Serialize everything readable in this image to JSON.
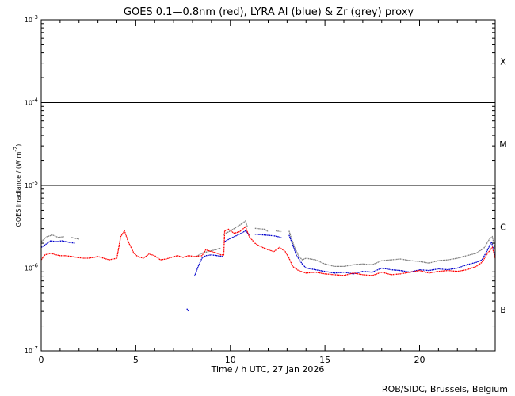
{
  "chart_data": {
    "type": "line",
    "title": "GOES 0.1—0.8nm (red), LYRA Al (blue) & Zr (grey) proxy",
    "xlabel": "Time / h UTC, 27 Jan 2026",
    "ylabel_parts": {
      "main": "GOES Irradiance / (W m",
      "exp": "-2",
      "close": ")"
    },
    "credit": "ROB/SIDC, Brussels, Belgium",
    "xlim": [
      0,
      24
    ],
    "ylim_log10": [
      -7,
      -3
    ],
    "x_ticks": [
      {
        "value": 0,
        "label": "0"
      },
      {
        "value": 5,
        "label": "5"
      },
      {
        "value": 10,
        "label": "10"
      },
      {
        "value": 15,
        "label": "15"
      },
      {
        "value": 20,
        "label": "20"
      }
    ],
    "y_ticks": [
      {
        "value": -7,
        "base": "10",
        "exp": "-7"
      },
      {
        "value": -6,
        "base": "10",
        "exp": "-6"
      },
      {
        "value": -5,
        "base": "10",
        "exp": "-5"
      },
      {
        "value": -4,
        "base": "10",
        "exp": "-4"
      },
      {
        "value": -3,
        "base": "10",
        "exp": "-3"
      }
    ],
    "reference_lines_log10": [
      -6,
      -5,
      -4
    ],
    "flare_classes": [
      {
        "label": "B",
        "log10": -6.5
      },
      {
        "label": "C",
        "log10": -5.5
      },
      {
        "label": "M",
        "log10": -4.5
      },
      {
        "label": "X",
        "log10": -3.5
      }
    ],
    "series": [
      {
        "name": "LYRA Zr proxy (grey)",
        "color": "#808080",
        "points": [
          [
            0.0,
            -5.68
          ],
          [
            0.3,
            -5.62
          ],
          [
            0.6,
            -5.6
          ],
          [
            0.9,
            -5.63
          ],
          [
            1.2,
            -5.62
          ],
          [
            1.5,
            null
          ],
          [
            1.6,
            -5.63
          ],
          [
            2.0,
            -5.65
          ],
          [
            2.1,
            null
          ],
          [
            8.2,
            -5.86
          ],
          [
            8.5,
            -5.82
          ],
          [
            9.0,
            -5.79
          ],
          [
            9.5,
            -5.76
          ],
          [
            9.6,
            null
          ],
          [
            9.6,
            -5.6
          ],
          [
            10.0,
            -5.55
          ],
          [
            10.5,
            -5.48
          ],
          [
            10.8,
            -5.43
          ],
          [
            10.9,
            -5.5
          ],
          [
            11.1,
            null
          ],
          [
            11.3,
            -5.52
          ],
          [
            11.8,
            -5.53
          ],
          [
            12.0,
            -5.56
          ],
          [
            12.3,
            null
          ],
          [
            12.4,
            -5.55
          ],
          [
            12.7,
            -5.56
          ],
          [
            12.9,
            null
          ],
          [
            13.1,
            -5.55
          ],
          [
            13.2,
            -5.62
          ],
          [
            13.4,
            -5.75
          ],
          [
            13.6,
            -5.85
          ],
          [
            13.8,
            -5.9
          ],
          [
            14.0,
            -5.88
          ],
          [
            14.5,
            -5.9
          ],
          [
            15.0,
            -5.95
          ],
          [
            15.5,
            -5.98
          ],
          [
            16.0,
            -5.98
          ],
          [
            16.5,
            -5.96
          ],
          [
            17.0,
            -5.95
          ],
          [
            17.5,
            -5.96
          ],
          [
            18.0,
            -5.91
          ],
          [
            18.5,
            -5.9
          ],
          [
            19.0,
            -5.89
          ],
          [
            19.5,
            -5.91
          ],
          [
            20.0,
            -5.92
          ],
          [
            20.5,
            -5.94
          ],
          [
            21.0,
            -5.91
          ],
          [
            21.5,
            -5.9
          ],
          [
            22.0,
            -5.88
          ],
          [
            22.5,
            -5.85
          ],
          [
            23.0,
            -5.82
          ],
          [
            23.4,
            -5.76
          ],
          [
            23.7,
            -5.65
          ],
          [
            23.85,
            -5.62
          ],
          [
            24.0,
            -5.78
          ]
        ]
      },
      {
        "name": "LYRA Al proxy (blue)",
        "color": "#0000cc",
        "points": [
          [
            0.0,
            -5.75
          ],
          [
            0.2,
            -5.72
          ],
          [
            0.5,
            -5.67
          ],
          [
            0.8,
            -5.68
          ],
          [
            1.1,
            -5.67
          ],
          [
            1.5,
            -5.69
          ],
          [
            1.8,
            -5.7
          ],
          [
            1.9,
            null
          ],
          [
            7.7,
            -6.49
          ],
          [
            7.78,
            -6.52
          ],
          [
            7.85,
            null
          ],
          [
            8.1,
            -6.1
          ],
          [
            8.3,
            -5.98
          ],
          [
            8.5,
            -5.88
          ],
          [
            8.7,
            -5.85
          ],
          [
            9.0,
            -5.84
          ],
          [
            9.3,
            -5.85
          ],
          [
            9.6,
            -5.86
          ],
          [
            9.7,
            null
          ],
          [
            9.7,
            -5.68
          ],
          [
            10.0,
            -5.64
          ],
          [
            10.4,
            -5.6
          ],
          [
            10.8,
            -5.55
          ],
          [
            11.0,
            -5.6
          ],
          [
            11.1,
            null
          ],
          [
            11.3,
            -5.59
          ],
          [
            11.8,
            -5.6
          ],
          [
            12.3,
            -5.61
          ],
          [
            12.7,
            -5.63
          ],
          [
            12.8,
            null
          ],
          [
            13.1,
            -5.6
          ],
          [
            13.3,
            -5.72
          ],
          [
            13.5,
            -5.85
          ],
          [
            13.8,
            -5.95
          ],
          [
            14.0,
            -6.0
          ],
          [
            14.5,
            -6.02
          ],
          [
            15.0,
            -6.04
          ],
          [
            15.5,
            -6.06
          ],
          [
            16.0,
            -6.05
          ],
          [
            16.5,
            -6.07
          ],
          [
            17.0,
            -6.04
          ],
          [
            17.5,
            -6.05
          ],
          [
            18.0,
            -6.0
          ],
          [
            18.5,
            -6.02
          ],
          [
            19.0,
            -6.03
          ],
          [
            19.5,
            -6.05
          ],
          [
            20.0,
            -6.02
          ],
          [
            20.5,
            -6.03
          ],
          [
            21.0,
            -6.01
          ],
          [
            21.5,
            -6.02
          ],
          [
            22.0,
            -6.0
          ],
          [
            22.5,
            -5.96
          ],
          [
            23.0,
            -5.93
          ],
          [
            23.3,
            -5.9
          ],
          [
            23.6,
            -5.78
          ],
          [
            23.8,
            -5.68
          ],
          [
            24.0,
            -5.85
          ]
        ]
      },
      {
        "name": "GOES 0.1–0.8nm (red)",
        "color": "#ff0000",
        "points": [
          [
            0.0,
            -5.9
          ],
          [
            0.2,
            -5.84
          ],
          [
            0.5,
            -5.82
          ],
          [
            0.8,
            -5.84
          ],
          [
            1.0,
            -5.85
          ],
          [
            1.3,
            -5.85
          ],
          [
            1.6,
            -5.86
          ],
          [
            1.9,
            -5.87
          ],
          [
            2.2,
            -5.88
          ],
          [
            2.5,
            -5.88
          ],
          [
            2.8,
            -5.87
          ],
          [
            3.0,
            -5.86
          ],
          [
            3.3,
            -5.88
          ],
          [
            3.6,
            -5.9
          ],
          [
            4.0,
            -5.88
          ],
          [
            4.2,
            -5.62
          ],
          [
            4.4,
            -5.55
          ],
          [
            4.6,
            -5.68
          ],
          [
            4.9,
            -5.82
          ],
          [
            5.1,
            -5.86
          ],
          [
            5.4,
            -5.88
          ],
          [
            5.7,
            -5.83
          ],
          [
            6.0,
            -5.85
          ],
          [
            6.3,
            -5.9
          ],
          [
            6.6,
            -5.89
          ],
          [
            6.9,
            -5.87
          ],
          [
            7.2,
            -5.85
          ],
          [
            7.5,
            -5.87
          ],
          [
            7.8,
            -5.85
          ],
          [
            8.1,
            -5.86
          ],
          [
            8.5,
            -5.85
          ],
          [
            8.7,
            -5.78
          ],
          [
            9.0,
            -5.8
          ],
          [
            9.3,
            -5.82
          ],
          [
            9.5,
            -5.84
          ],
          [
            9.65,
            -5.84
          ],
          [
            9.7,
            -5.55
          ],
          [
            9.9,
            -5.53
          ],
          [
            10.2,
            -5.58
          ],
          [
            10.5,
            -5.56
          ],
          [
            10.8,
            -5.5
          ],
          [
            11.0,
            -5.62
          ],
          [
            11.3,
            -5.7
          ],
          [
            11.6,
            -5.74
          ],
          [
            12.0,
            -5.78
          ],
          [
            12.3,
            -5.8
          ],
          [
            12.6,
            -5.75
          ],
          [
            12.9,
            -5.8
          ],
          [
            13.1,
            -5.88
          ],
          [
            13.3,
            -5.98
          ],
          [
            13.6,
            -6.03
          ],
          [
            14.0,
            -6.06
          ],
          [
            14.5,
            -6.05
          ],
          [
            15.0,
            -6.07
          ],
          [
            15.5,
            -6.08
          ],
          [
            16.0,
            -6.09
          ],
          [
            16.5,
            -6.06
          ],
          [
            17.0,
            -6.08
          ],
          [
            17.5,
            -6.09
          ],
          [
            18.0,
            -6.05
          ],
          [
            18.5,
            -6.08
          ],
          [
            19.0,
            -6.07
          ],
          [
            19.5,
            -6.05
          ],
          [
            20.0,
            -6.03
          ],
          [
            20.5,
            -6.06
          ],
          [
            21.0,
            -6.04
          ],
          [
            21.5,
            -6.03
          ],
          [
            22.0,
            -6.04
          ],
          [
            22.5,
            -6.02
          ],
          [
            23.0,
            -5.98
          ],
          [
            23.3,
            -5.93
          ],
          [
            23.6,
            -5.82
          ],
          [
            23.85,
            -5.75
          ],
          [
            24.0,
            -5.88
          ]
        ]
      }
    ]
  }
}
